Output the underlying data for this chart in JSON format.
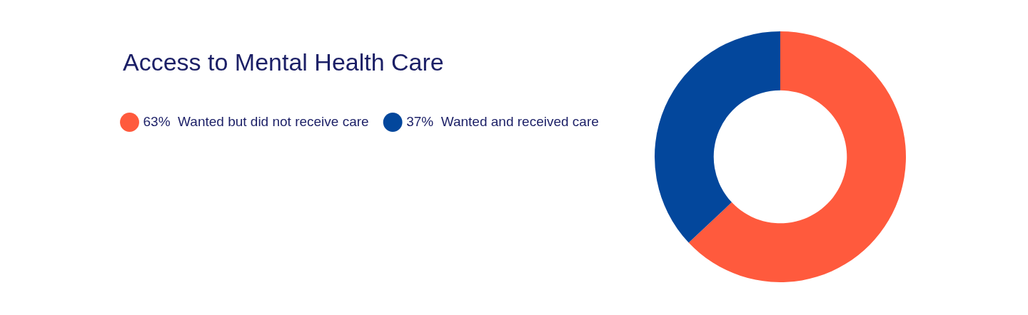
{
  "chart_data": {
    "type": "donut",
    "title": "Access to Mental Health Care",
    "categories": [
      "Wanted but did not receive care",
      "Wanted and received care"
    ],
    "values": [
      63,
      37
    ],
    "value_labels": [
      "63%",
      "37%"
    ],
    "colors": [
      "#ff5a3d",
      "#03479c"
    ],
    "legend": "left"
  }
}
